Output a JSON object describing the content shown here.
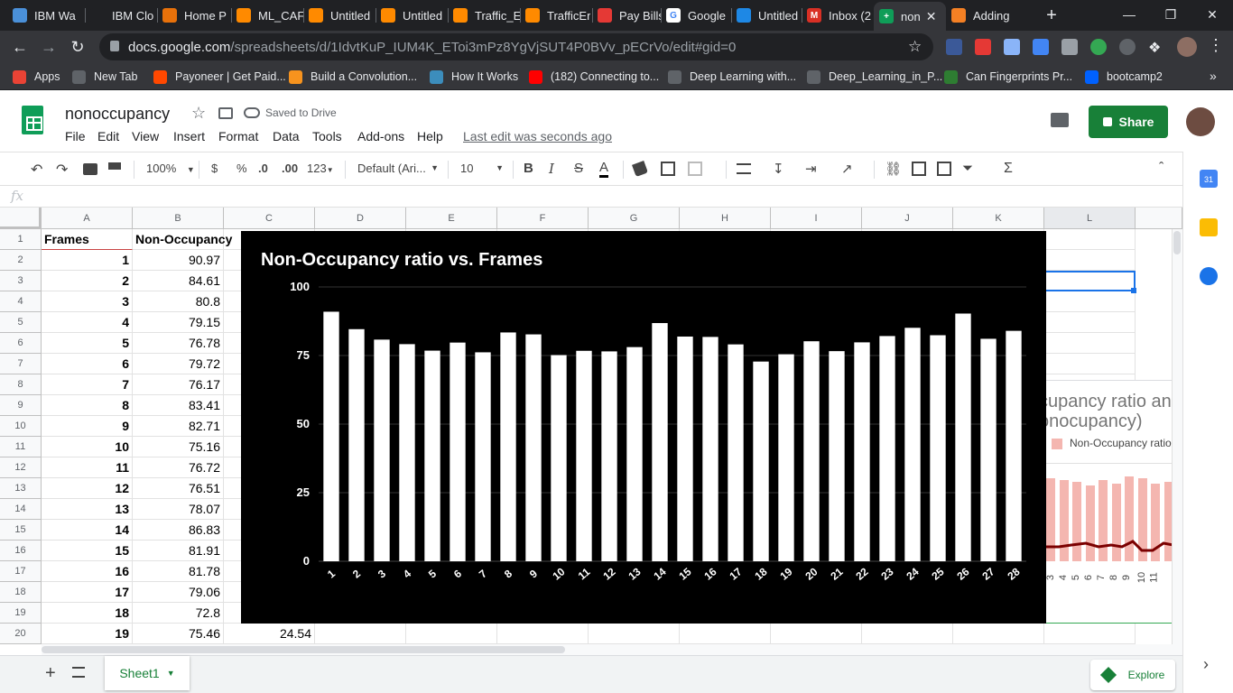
{
  "browser": {
    "tabs": [
      {
        "title": "IBM Wa",
        "fav": "#4a90d9",
        "glyph": ""
      },
      {
        "title": "IBM Clo",
        "fav": "#202124",
        "glyph": ""
      },
      {
        "title": "Home P",
        "fav": "#e8710a",
        "glyph": ""
      },
      {
        "title": "ML_CAF",
        "fav": "#ff8a00",
        "glyph": ""
      },
      {
        "title": "Untitled",
        "fav": "#ff8a00",
        "glyph": ""
      },
      {
        "title": "Untitled",
        "fav": "#ff8a00",
        "glyph": ""
      },
      {
        "title": "Traffic_E",
        "fav": "#ff8a00",
        "glyph": ""
      },
      {
        "title": "TrafficEr",
        "fav": "#ff8a00",
        "glyph": ""
      },
      {
        "title": "Pay Bills",
        "fav": "#e53935",
        "glyph": ""
      },
      {
        "title": "Google",
        "fav": "#ffffff",
        "glyph": "G"
      },
      {
        "title": "Untitled",
        "fav": "#1e88e5",
        "glyph": ""
      },
      {
        "title": "Inbox (2",
        "fav": "#d93025",
        "glyph": "M"
      },
      {
        "title": "non",
        "fav": "#0f9d58",
        "glyph": "+",
        "active": true
      },
      {
        "title": "Adding",
        "fav": "#f48024",
        "glyph": ""
      }
    ],
    "url_host": "docs.google.com",
    "url_path": "/spreadsheets/d/1IdvtKuP_IUM4K_EToi3mPz8YgVjSUT4P0BVv_pECrVo/edit#gid=0",
    "bookmarks": [
      {
        "label": "Apps",
        "color": "#ea4335"
      },
      {
        "label": "New Tab",
        "color": "#5f6368"
      },
      {
        "label": "Payoneer | Get Paid...",
        "color": "#ff4800"
      },
      {
        "label": "Build a Convolution...",
        "color": "#f7931e"
      },
      {
        "label": "How It Works",
        "color": "#3c8dbc"
      },
      {
        "label": "(182) Connecting to...",
        "color": "#ff0000"
      },
      {
        "label": "Deep Learning with...",
        "color": "#5f6368"
      },
      {
        "label": "Deep_Learning_in_P...",
        "color": "#5f6368"
      },
      {
        "label": "Can Fingerprints Pr...",
        "color": "#2e7d32"
      },
      {
        "label": "bootcamp2",
        "color": "#0061fe"
      }
    ]
  },
  "doc": {
    "title": "nonoccupancy",
    "saved": "Saved to Drive",
    "menus": [
      "File",
      "Edit",
      "View",
      "Insert",
      "Format",
      "Data",
      "Tools",
      "Add-ons",
      "Help"
    ],
    "last_edit": "Last edit was seconds ago",
    "share": "Share"
  },
  "toolbar": {
    "zoom": "100%",
    "currency": "$",
    "percent": "%",
    "dec_less": ".0",
    "dec_more": ".00",
    "format_more": "123",
    "font": "Default (Ari...",
    "size": "10"
  },
  "grid": {
    "columns": [
      "A",
      "B",
      "C",
      "D",
      "E",
      "F",
      "G",
      "H",
      "I",
      "J",
      "K",
      "L"
    ],
    "header_a": "Frames",
    "header_b": "Non-Occupancy",
    "rows": [
      {
        "frame": "1",
        "value": "90.97"
      },
      {
        "frame": "2",
        "value": "84.61"
      },
      {
        "frame": "3",
        "value": "80.8"
      },
      {
        "frame": "4",
        "value": "79.15"
      },
      {
        "frame": "5",
        "value": "76.78"
      },
      {
        "frame": "6",
        "value": "79.72"
      },
      {
        "frame": "7",
        "value": "76.17"
      },
      {
        "frame": "8",
        "value": "83.41"
      },
      {
        "frame": "9",
        "value": "82.71"
      },
      {
        "frame": "10",
        "value": "75.16"
      },
      {
        "frame": "11",
        "value": "76.72"
      },
      {
        "frame": "12",
        "value": "76.51"
      },
      {
        "frame": "13",
        "value": "78.07"
      },
      {
        "frame": "14",
        "value": "86.83"
      },
      {
        "frame": "15",
        "value": "81.91"
      },
      {
        "frame": "16",
        "value": "81.78"
      },
      {
        "frame": "17",
        "value": "79.06"
      },
      {
        "frame": "18",
        "value": "72.8"
      },
      {
        "frame": "19",
        "value": "75.46",
        "c": "24.54"
      }
    ]
  },
  "chart_data": {
    "type": "bar",
    "title": "Non-Occupancy ratio vs. Frames",
    "categories": [
      "1",
      "2",
      "3",
      "4",
      "5",
      "6",
      "7",
      "8",
      "9",
      "10",
      "11",
      "12",
      "13",
      "14",
      "15",
      "16",
      "17",
      "18",
      "19",
      "20",
      "21",
      "22",
      "23",
      "24",
      "25",
      "26",
      "27",
      "28"
    ],
    "values": [
      90.97,
      84.61,
      80.8,
      79.15,
      76.78,
      79.72,
      76.17,
      83.41,
      82.71,
      75.16,
      76.72,
      76.51,
      78.07,
      86.83,
      81.91,
      81.78,
      79.06,
      72.8,
      75.46,
      80.2,
      76.6,
      79.8,
      82.1,
      85.1,
      82.4,
      90.3,
      81.1,
      84.0
    ],
    "yticks": [
      "0",
      "25",
      "50",
      "75",
      "100"
    ],
    "ylim": [
      0,
      100
    ],
    "bar_color": "#ffffff",
    "background": "#000000"
  },
  "chart2": {
    "title_line1": "cupancy ratio an",
    "title_line2": "onocupancy)",
    "legend": "Non-Occupancy ratio",
    "xticks": [
      "3",
      "4",
      "5",
      "6",
      "7",
      "8",
      "9",
      "10",
      "11"
    ]
  },
  "bottom": {
    "sheet": "Sheet1",
    "explore": "Explore"
  }
}
